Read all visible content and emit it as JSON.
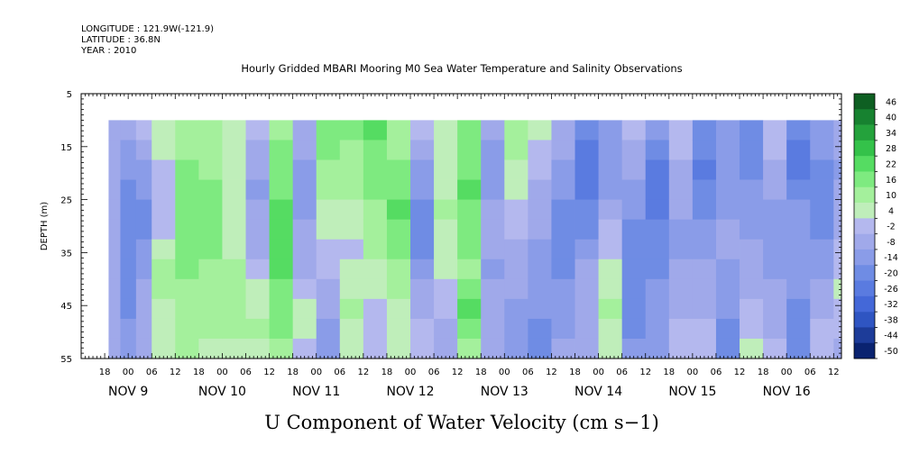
{
  "header": {
    "longitude": "LONGITUDE : 121.9W(-121.9)",
    "latitude": "LATITUDE : 36.8N",
    "year": "YEAR : 2010"
  },
  "chart_data": {
    "type": "heatmap",
    "title": "Hourly Gridded MBARI Mooring M0 Sea Water Temperature and Salinity Observations",
    "bottom_title": "U Component of Water Velocity (cm s−1)",
    "ylabel": "DEPTH (m)",
    "ylim": [
      5,
      55
    ],
    "y_inverted": true,
    "y_ticks": [
      "5",
      "15",
      "25",
      "35",
      "45",
      "55"
    ],
    "data_depth_range": [
      10,
      55
    ],
    "x_hour_labels": [
      "18",
      "00",
      "06",
      "12",
      "18",
      "00",
      "06",
      "12",
      "18",
      "00",
      "06",
      "12",
      "18",
      "00",
      "06",
      "12",
      "18",
      "00",
      "06",
      "12",
      "18",
      "00",
      "06",
      "12",
      "18",
      "00",
      "06",
      "12",
      "18",
      "00",
      "06",
      "12"
    ],
    "x_day_labels": [
      "NOV  9",
      "NOV 10",
      "NOV 11",
      "NOV 12",
      "NOV 13",
      "NOV 14",
      "NOV 15",
      "NOV 16"
    ],
    "x_start": "2010-11-08 12:00",
    "x_end": "2010-11-16 14:00",
    "data_time_start": "2010-11-08 19:00",
    "colorbar": {
      "levels": [
        -50,
        -44,
        -38,
        -32,
        -26,
        -20,
        -14,
        -8,
        -2,
        4,
        10,
        16,
        22,
        28,
        34,
        40,
        46
      ],
      "labels": [
        "46",
        "40",
        "34",
        "28",
        "22",
        "16",
        "10",
        "4",
        "-2",
        "-8",
        "-14",
        "-20",
        "-26",
        "-32",
        "-38",
        "-44",
        "-50"
      ],
      "colors": [
        "#0a2370",
        "#1d3c99",
        "#2f55c2",
        "#4468d8",
        "#5a7be0",
        "#6f8ce4",
        "#8a9ce8",
        "#a0a9ea",
        "#b4b8ee",
        "#bfeeba",
        "#a4f09c",
        "#7eea80",
        "#55dc62",
        "#34c24a",
        "#24a23c",
        "#178230",
        "#0e5f22"
      ]
    },
    "columns": [
      {
        "t": "2010-11-08 19:00",
        "u": [
          -4,
          -4,
          -5,
          -6,
          -6,
          -6,
          -5,
          -5,
          -4,
          -3,
          -3,
          -3
        ]
      },
      {
        "t": "2010-11-08 22:00",
        "u": [
          -6,
          -10,
          -14,
          -16,
          -18,
          -20,
          -20,
          -19,
          -18,
          -16,
          -12,
          -10
        ]
      },
      {
        "t": "2010-11-09 02:00",
        "u": [
          -2,
          -6,
          -10,
          -14,
          -16,
          -16,
          -14,
          -10,
          -8,
          -6,
          -4,
          -4
        ]
      },
      {
        "t": "2010-11-09 06:00",
        "u": [
          6,
          4,
          2,
          0,
          -2,
          2,
          6,
          10,
          10,
          8,
          6,
          6
        ]
      },
      {
        "t": "2010-11-09 12:00",
        "u": [
          12,
          14,
          16,
          18,
          20,
          20,
          18,
          16,
          14,
          12,
          10,
          10
        ]
      },
      {
        "t": "2010-11-09 18:00",
        "u": [
          10,
          12,
          14,
          16,
          18,
          18,
          16,
          14,
          12,
          10,
          10,
          8
        ]
      },
      {
        "t": "2010-11-10 00:00",
        "u": [
          4,
          6,
          8,
          6,
          4,
          6,
          8,
          10,
          12,
          14,
          12,
          8
        ]
      },
      {
        "t": "2010-11-10 06:00",
        "u": [
          2,
          -4,
          -8,
          -10,
          -8,
          -6,
          -4,
          -2,
          4,
          8,
          10,
          8
        ]
      },
      {
        "t": "2010-11-10 12:00",
        "u": [
          12,
          16,
          18,
          20,
          22,
          24,
          24,
          22,
          20,
          18,
          16,
          14
        ]
      },
      {
        "t": "2010-11-10 18:00",
        "u": [
          -6,
          -8,
          -10,
          -12,
          -10,
          -8,
          -6,
          -4,
          2,
          6,
          4,
          2
        ]
      },
      {
        "t": "2010-11-11 00:00",
        "u": [
          20,
          18,
          14,
          10,
          6,
          4,
          2,
          -2,
          -6,
          -8,
          -10,
          -10
        ]
      },
      {
        "t": "2010-11-11 06:00",
        "u": [
          16,
          14,
          12,
          10,
          6,
          4,
          2,
          6,
          8,
          10,
          8,
          6
        ]
      },
      {
        "t": "2010-11-11 12:00",
        "u": [
          22,
          20,
          18,
          16,
          14,
          12,
          10,
          6,
          4,
          2,
          2,
          2
        ]
      },
      {
        "t": "2010-11-11 18:00",
        "u": [
          12,
          14,
          18,
          20,
          22,
          20,
          16,
          12,
          10,
          8,
          6,
          6
        ]
      },
      {
        "t": "2010-11-12 00:00",
        "u": [
          -2,
          -6,
          -10,
          -14,
          -18,
          -20,
          -16,
          -10,
          -6,
          -4,
          -2,
          -2
        ]
      },
      {
        "t": "2010-11-12 06:00",
        "u": [
          8,
          6,
          4,
          6,
          10,
          8,
          6,
          4,
          2,
          -2,
          -6,
          -8
        ]
      },
      {
        "t": "2010-11-12 12:00",
        "u": [
          16,
          18,
          20,
          22,
          20,
          18,
          16,
          14,
          20,
          22,
          18,
          14
        ]
      },
      {
        "t": "2010-11-12 18:00",
        "u": [
          -8,
          -10,
          -12,
          -10,
          -8,
          -6,
          -8,
          -10,
          -6,
          -4,
          -6,
          -8
        ]
      },
      {
        "t": "2010-11-13 00:00",
        "u": [
          14,
          10,
          6,
          4,
          2,
          -2,
          -4,
          -6,
          -8,
          -10,
          -12,
          -14
        ]
      },
      {
        "t": "2010-11-13 06:00",
        "u": [
          4,
          2,
          -2,
          -4,
          -6,
          -8,
          -10,
          -12,
          -14,
          -14,
          -16,
          -16
        ]
      },
      {
        "t": "2010-11-13 12:00",
        "u": [
          -6,
          -8,
          -12,
          -14,
          -16,
          -18,
          -18,
          -16,
          -14,
          -12,
          -10,
          -8
        ]
      },
      {
        "t": "2010-11-13 18:00",
        "u": [
          -20,
          -24,
          -26,
          -24,
          -20,
          -16,
          -12,
          -8,
          -6,
          -4,
          -4,
          -4
        ]
      },
      {
        "t": "2010-11-14 00:00",
        "u": [
          -10,
          -12,
          -14,
          -10,
          -6,
          -2,
          2,
          6,
          8,
          10,
          8,
          6
        ]
      },
      {
        "t": "2010-11-14 06:00",
        "u": [
          -2,
          -4,
          -8,
          -12,
          -14,
          -16,
          -18,
          -20,
          -20,
          -18,
          -16,
          -14
        ]
      },
      {
        "t": "2010-11-14 12:00",
        "u": [
          -14,
          -18,
          -22,
          -24,
          -22,
          -20,
          -18,
          -16,
          -14,
          -14,
          -12,
          -12
        ]
      },
      {
        "t": "2010-11-14 18:00",
        "u": [
          2,
          -2,
          -4,
          -6,
          -8,
          -10,
          -10,
          -8,
          -6,
          -4,
          -2,
          -2
        ]
      },
      {
        "t": "2010-11-15 00:00",
        "u": [
          -18,
          -20,
          -22,
          -20,
          -18,
          -14,
          -10,
          -8,
          -6,
          -4,
          -2,
          2
        ]
      },
      {
        "t": "2010-11-15 06:00",
        "u": [
          -10,
          -12,
          -14,
          -12,
          -10,
          -8,
          -8,
          -10,
          -12,
          -14,
          -16,
          -18
        ]
      },
      {
        "t": "2010-11-15 12:00",
        "u": [
          -16,
          -18,
          -16,
          -14,
          -12,
          -10,
          -8,
          -6,
          -4,
          -2,
          2,
          4
        ]
      },
      {
        "t": "2010-11-15 18:00",
        "u": [
          2,
          -2,
          -6,
          -8,
          -10,
          -12,
          -12,
          -10,
          -8,
          -6,
          -4,
          -2
        ]
      },
      {
        "t": "2010-11-16 00:00",
        "u": [
          -20,
          -24,
          -22,
          -18,
          -14,
          -12,
          -10,
          -12,
          -14,
          -16,
          -18,
          -20
        ]
      },
      {
        "t": "2010-11-16 06:00",
        "u": [
          -12,
          -14,
          -16,
          -18,
          -20,
          -18,
          -14,
          -10,
          -6,
          -4,
          -2,
          2
        ]
      },
      {
        "t": "2010-11-16 12:00",
        "u": [
          -6,
          -8,
          -10,
          -8,
          -6,
          -4,
          -2,
          2,
          4,
          2,
          -2,
          -4
        ]
      }
    ]
  }
}
